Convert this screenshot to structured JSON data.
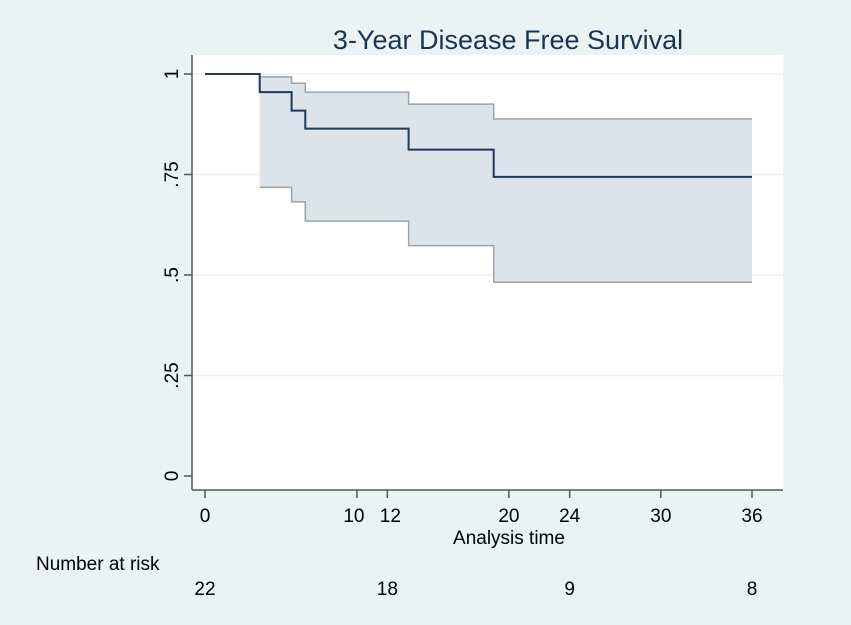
{
  "chart_data": {
    "type": "line",
    "subtype": "kaplan-meier step with confidence band",
    "title": "3-Year Disease Free Survival",
    "xlabel": "Analysis time",
    "ylabel": "",
    "xlim": [
      0,
      36
    ],
    "ylim": [
      0,
      1
    ],
    "xticks": [
      0,
      10,
      12,
      20,
      24,
      30,
      36
    ],
    "xtick_labels": [
      "0",
      "10",
      "12",
      "20",
      "24",
      "30",
      "36"
    ],
    "yticks": [
      0,
      0.25,
      0.5,
      0.75,
      1
    ],
    "ytick_labels": [
      "0",
      ".25",
      ".5",
      ".75",
      "1"
    ],
    "grid": true,
    "colors": {
      "line": "#1f3a57",
      "band_fill": "#dde3ea",
      "band_edge": "#9aa4ae",
      "background": "#eaf2f3",
      "plot_bg": "#ffffff"
    },
    "survival": {
      "time": [
        0,
        3.6,
        5.7,
        6.6,
        13.4,
        19.0,
        36
      ],
      "value": [
        1,
        0.955,
        0.909,
        0.864,
        0.812,
        0.744,
        0.744
      ]
    },
    "ci_upper": {
      "time": [
        3.6,
        5.7,
        6.6,
        13.4,
        19.0,
        36
      ],
      "value": [
        0.993,
        0.977,
        0.955,
        0.925,
        0.888,
        0.888
      ]
    },
    "ci_lower": {
      "time": [
        3.6,
        5.7,
        6.6,
        13.4,
        19.0,
        36
      ],
      "value": [
        0.718,
        0.682,
        0.634,
        0.573,
        0.482,
        0.482
      ]
    },
    "risk_table": {
      "label": "Number at risk",
      "times": [
        0,
        12,
        24,
        36
      ],
      "counts": [
        "22",
        "18",
        "9",
        "8"
      ]
    }
  }
}
